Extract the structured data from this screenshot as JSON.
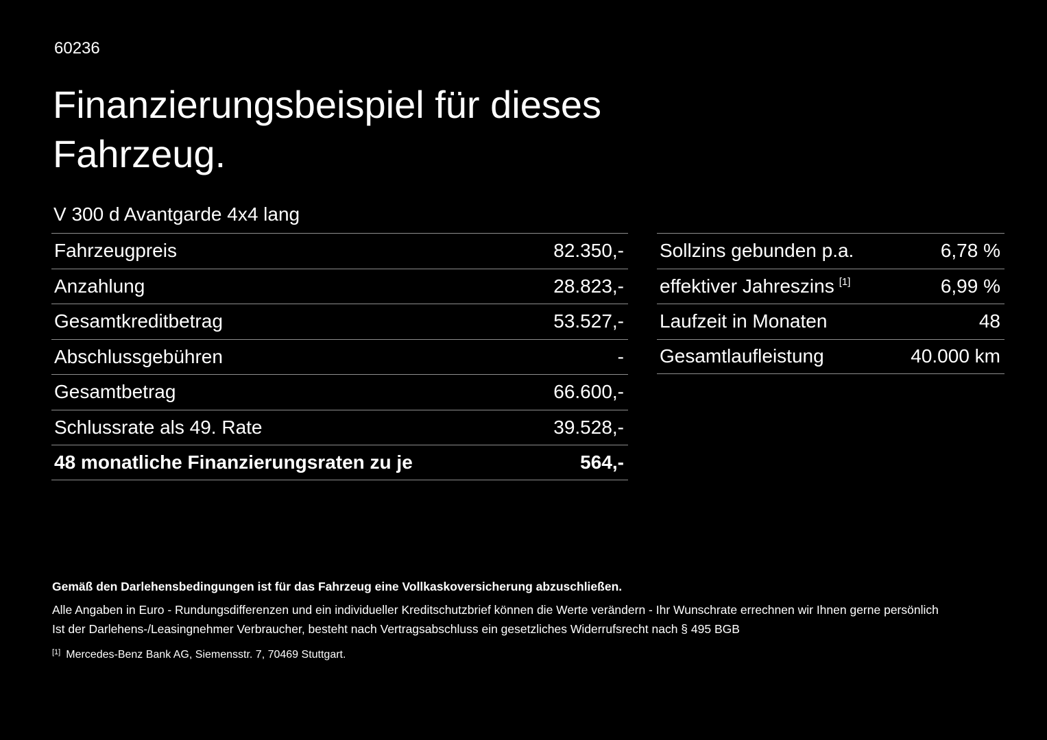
{
  "page": {
    "doc_number": "60236",
    "title_line1": "Finanzierungsbeispiel für dieses",
    "title_line2": "Fahrzeug.",
    "vehicle_model": "V 300 d Avantgarde 4x4 lang"
  },
  "left_table": {
    "rows": [
      {
        "label": "Fahrzeugpreis",
        "value": "82.350,-"
      },
      {
        "label": "Anzahlung",
        "value": "28.823,-"
      },
      {
        "label": "Gesamtkreditbetrag",
        "value": "53.527,-"
      },
      {
        "label": "Abschlussgebühren",
        "value": "-"
      },
      {
        "label": "Gesamtbetrag",
        "value": "66.600,-"
      },
      {
        "label": "Schlussrate als 49. Rate",
        "value": "39.528,-"
      },
      {
        "label": "48 monatliche Finanzierungsraten zu je",
        "value": "564,-"
      }
    ]
  },
  "right_table": {
    "rows": [
      {
        "label": "Sollzins gebunden p.a.",
        "value": "6,78 %"
      },
      {
        "label": "effektiver Jahreszins",
        "sup": "[1]",
        "value": "6,99 %"
      },
      {
        "label": "Laufzeit in Monaten",
        "value": "48"
      },
      {
        "label": "Gesamtlaufleistung",
        "value": "40.000 km"
      }
    ]
  },
  "footer": {
    "bold_line": "Gemäß den Darlehensbedingungen ist für das Fahrzeug eine Vollkaskoversicherung abzuschließen.",
    "line2": "Alle Angaben in Euro - Rundungsdifferenzen und ein individueller Kreditschutzbrief können die Werte verändern - Ihr Wunschrate errechnen wir Ihnen gerne persönlich",
    "line3": "Ist der Darlehens-/Leasingnehmer Verbraucher, besteht nach Vertragsabschluss ein gesetzliches Widerrufsrecht nach § 495 BGB",
    "footnote_marker": "[1]",
    "footnote_text": "Mercedes-Benz Bank AG, Siemensstr. 7, 70469 Stuttgart."
  }
}
